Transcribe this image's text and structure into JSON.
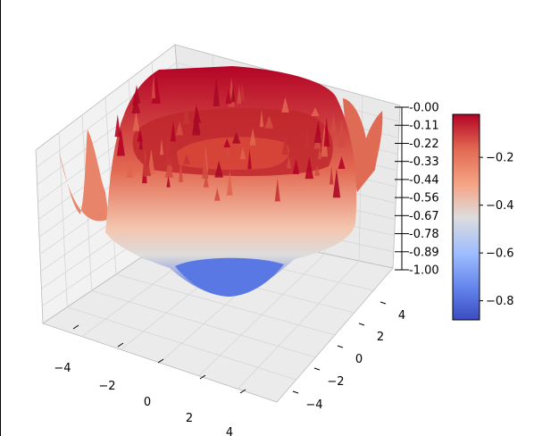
{
  "chart_data": {
    "type": "surface",
    "title": "",
    "colormap": "coolwarm",
    "colors": {
      "low": "#3b4cc0",
      "mid": "#dddddd",
      "high": "#b40426"
    },
    "x_ticks": [
      "−4",
      "−2",
      "0",
      "2",
      "4"
    ],
    "y_ticks": [
      "−4",
      "−2",
      "0",
      "2",
      "4"
    ],
    "z_ticks": [
      "-0.00",
      "-0.11",
      "-0.22",
      "-0.33",
      "-0.44",
      "-0.56",
      "-0.67",
      "-0.78",
      "-0.89",
      "-1.00"
    ],
    "xlim": [
      -5,
      5
    ],
    "ylim": [
      -5,
      5
    ],
    "zlim": [
      -1.0,
      0.0
    ],
    "colorbar": {
      "ticks": [
        "−0.2",
        "−0.4",
        "−0.6",
        "−0.8"
      ],
      "range": [
        -0.88,
        -0.02
      ]
    },
    "grid": true
  }
}
